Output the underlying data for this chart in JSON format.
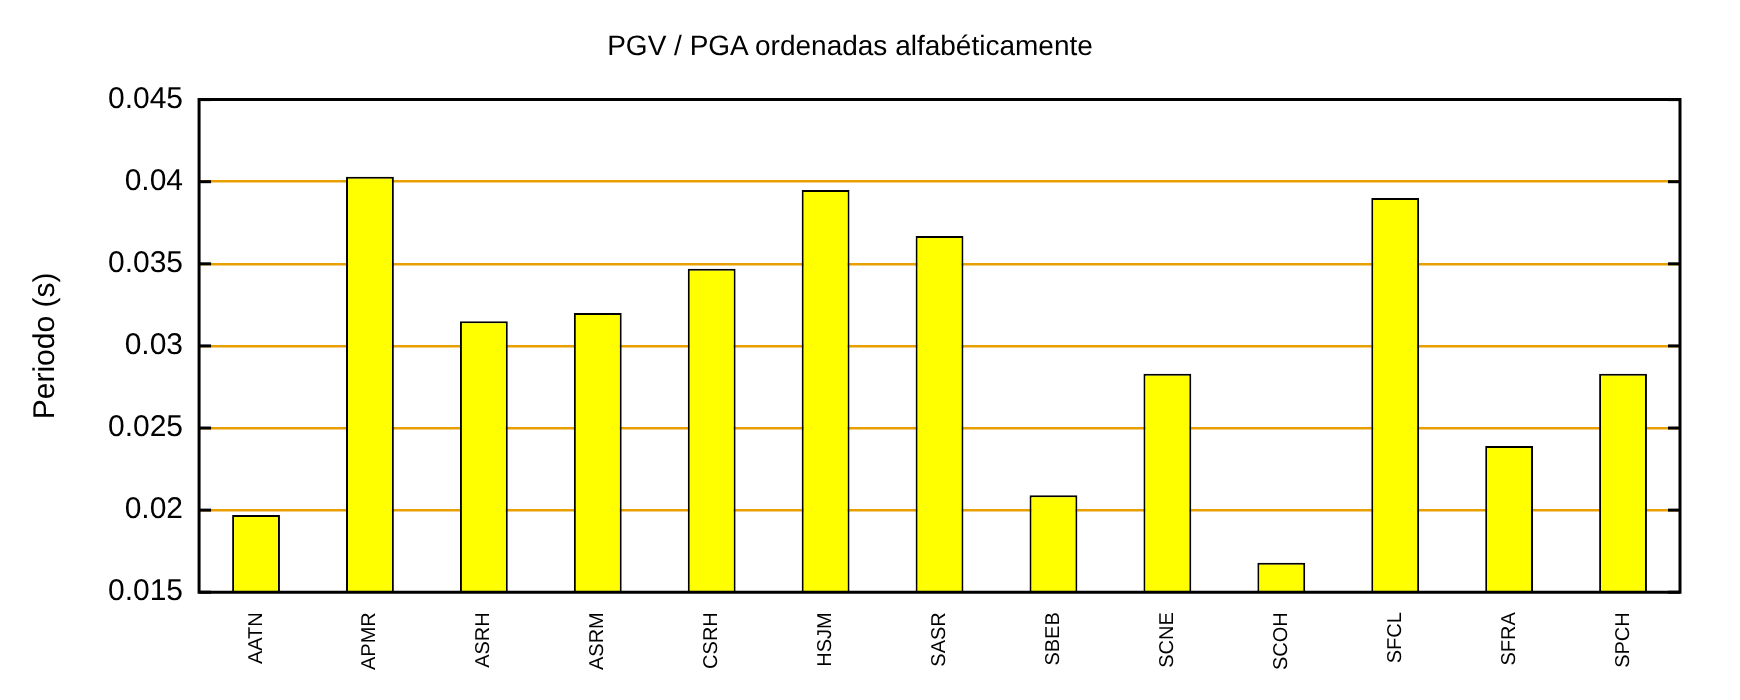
{
  "chart_data": {
    "type": "bar",
    "title": "PGV / PGA ordenadas alfabéticamente",
    "ylabel": "Periodo (s)",
    "categories": [
      "AATN",
      "APMR",
      "ASRH",
      "ASRM",
      "CSRH",
      "HSJM",
      "SASR",
      "SBEB",
      "SCNE",
      "SCOH",
      "SFCL",
      "SFRA",
      "SPCH"
    ],
    "values": [
      0.0197,
      0.0403,
      0.0315,
      0.032,
      0.0347,
      0.0395,
      0.0367,
      0.0209,
      0.0283,
      0.0168,
      0.039,
      0.0239,
      0.0283
    ],
    "color": "#ffff00",
    "ylim": [
      0.015,
      0.045
    ],
    "yticks": [
      0.015,
      0.02,
      0.025,
      0.03,
      0.035,
      0.04,
      0.045
    ],
    "grid": "y",
    "legend": false
  }
}
